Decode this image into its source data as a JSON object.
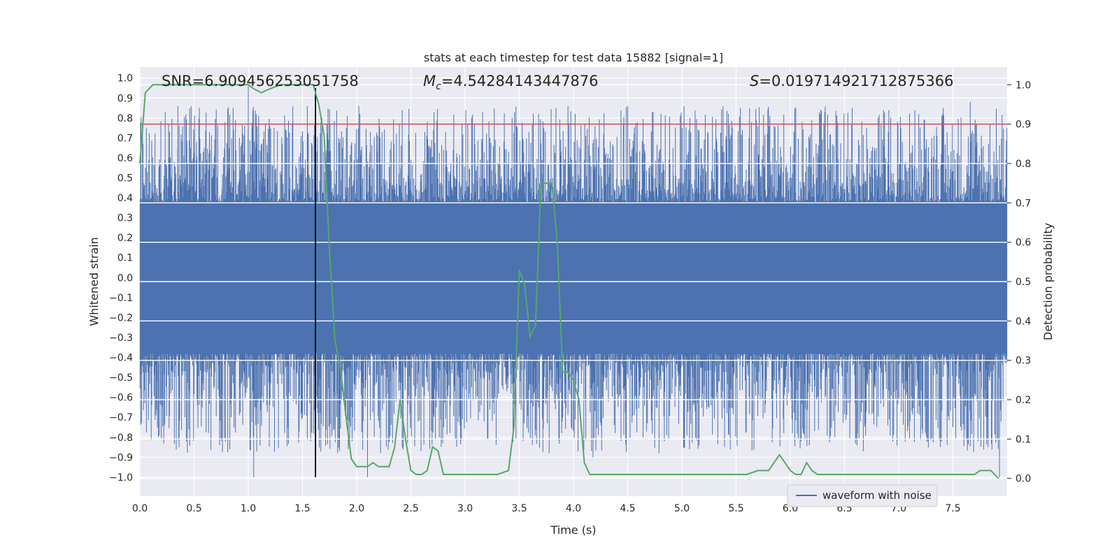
{
  "chart_data": {
    "type": "line",
    "title": "stats at each timestep for test data 15882 [signal=1]",
    "xlabel": "Time (s)",
    "ylabel": "Whitened strain",
    "y2label": "Detection probability",
    "xlim": [
      0.0,
      8.0
    ],
    "ylim": [
      -1.095,
      1.055
    ],
    "y2lim": [
      -0.045,
      1.045
    ],
    "x_ticks": [
      "0.0",
      "0.5",
      "1.0",
      "1.5",
      "2.0",
      "2.5",
      "3.0",
      "3.5",
      "4.0",
      "4.5",
      "5.0",
      "5.5",
      "6.0",
      "6.5",
      "7.0",
      "7.5"
    ],
    "y_ticks": [
      "1.0",
      "0.9",
      "0.8",
      "0.7",
      "0.6",
      "0.5",
      "0.4",
      "0.3",
      "0.2",
      "0.1",
      "0.0",
      "-0.1",
      "-0.2",
      "-0.3",
      "-0.4",
      "-0.5",
      "-0.6",
      "-0.7",
      "-0.8",
      "-0.9",
      "-1.0"
    ],
    "y2_ticks": [
      "1.0",
      "0.9",
      "0.8",
      "0.7",
      "0.6",
      "0.5",
      "0.4",
      "0.3",
      "0.2",
      "0.1",
      "0.0"
    ],
    "grid": true,
    "legend_position": "bottom-right",
    "annotations": {
      "snr": "SNR=6.909456253051758",
      "mc_symbol": "M",
      "mc_sub": "c",
      "mc_value": "=4.54284143447876",
      "s_symbol": "S",
      "s_value": "=0.019714921712875366"
    },
    "threshold": {
      "axis": "right",
      "value": 0.9,
      "color": "#c44e52"
    },
    "marker_time": 1.62,
    "colors": {
      "waveform": "#4c72b0",
      "probability": "#55a868",
      "threshold": "#c44e52",
      "marker": "#000000",
      "background": "#eaeaf2"
    },
    "series": [
      {
        "name": "waveform with noise",
        "axis": "left",
        "kind": "noise-band",
        "typical_envelope": [
          -0.38,
          0.38
        ],
        "peak_range": [
          -1.0,
          0.96
        ]
      },
      {
        "axis": "right",
        "x": [
          0.0,
          0.05,
          0.12,
          0.2,
          0.3,
          0.4,
          0.5,
          0.6,
          0.7,
          0.8,
          0.9,
          1.0,
          1.05,
          1.12,
          1.2,
          1.3,
          1.4,
          1.5,
          1.6,
          1.65,
          1.7,
          1.75,
          1.8,
          1.85,
          1.9,
          1.95,
          2.0,
          2.05,
          2.1,
          2.15,
          2.2,
          2.25,
          2.3,
          2.35,
          2.4,
          2.45,
          2.5,
          2.55,
          2.6,
          2.65,
          2.7,
          2.75,
          2.8,
          2.85,
          2.9,
          2.95,
          3.0,
          3.1,
          3.2,
          3.3,
          3.4,
          3.45,
          3.5,
          3.55,
          3.6,
          3.65,
          3.7,
          3.75,
          3.8,
          3.85,
          3.9,
          3.95,
          4.0,
          4.05,
          4.1,
          4.15,
          4.2,
          4.3,
          4.5,
          4.8,
          5.0,
          5.2,
          5.5,
          5.6,
          5.7,
          5.8,
          5.85,
          5.9,
          5.95,
          6.0,
          6.05,
          6.1,
          6.15,
          6.2,
          6.25,
          6.3,
          6.4,
          6.6,
          6.8,
          7.0,
          7.2,
          7.4,
          7.6,
          7.7,
          7.75,
          7.8,
          7.85,
          7.92
        ],
        "values": [
          0.8,
          0.98,
          1.0,
          1.0,
          1.0,
          1.0,
          1.0,
          1.0,
          1.0,
          1.0,
          1.0,
          1.0,
          0.99,
          0.98,
          0.99,
          1.0,
          1.0,
          1.0,
          1.0,
          0.95,
          0.87,
          0.57,
          0.35,
          0.28,
          0.16,
          0.05,
          0.03,
          0.03,
          0.03,
          0.04,
          0.03,
          0.03,
          0.03,
          0.08,
          0.2,
          0.1,
          0.02,
          0.01,
          0.01,
          0.02,
          0.08,
          0.07,
          0.01,
          0.01,
          0.01,
          0.01,
          0.01,
          0.01,
          0.01,
          0.01,
          0.02,
          0.13,
          0.53,
          0.49,
          0.36,
          0.39,
          0.75,
          0.75,
          0.75,
          0.6,
          0.27,
          0.27,
          0.25,
          0.2,
          0.04,
          0.01,
          0.01,
          0.01,
          0.01,
          0.01,
          0.01,
          0.01,
          0.01,
          0.01,
          0.02,
          0.02,
          0.04,
          0.06,
          0.04,
          0.02,
          0.01,
          0.01,
          0.04,
          0.02,
          0.01,
          0.01,
          0.01,
          0.01,
          0.01,
          0.01,
          0.01,
          0.01,
          0.01,
          0.01,
          0.02,
          0.02,
          0.02,
          0.0
        ]
      }
    ]
  }
}
